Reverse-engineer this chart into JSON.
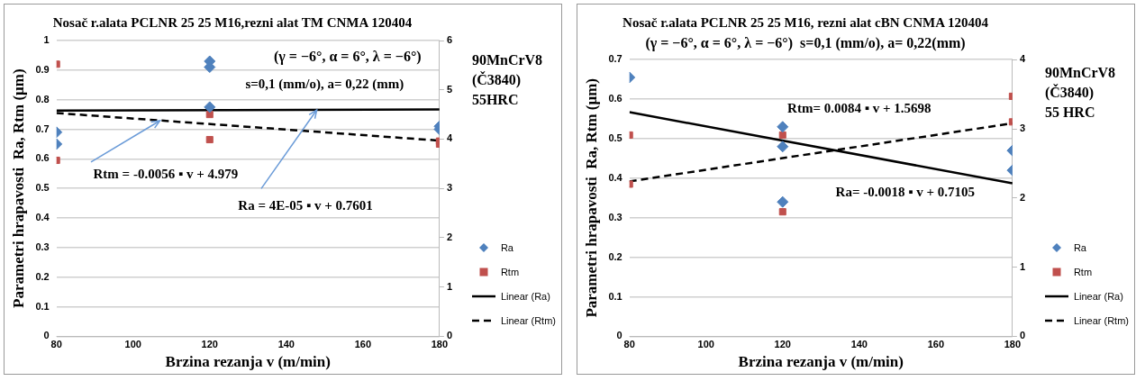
{
  "chart_data": [
    {
      "type": "scatter",
      "title": "Nosač r.alata PCLNR 25 25 M16,rezni alat TM CNMA 120404",
      "xlabel": "Brzina rezanja v (m/min)",
      "ylabel": "Parametri hrapavosti  Ra, Rtm (μm)",
      "xlim": [
        80,
        180
      ],
      "xticks": [
        80,
        100,
        120,
        140,
        160,
        180
      ],
      "ylim": [
        0,
        1
      ],
      "yticks": [
        0,
        0.1,
        0.2,
        0.3,
        0.4,
        0.5,
        0.6,
        0.7,
        0.8,
        0.9,
        1
      ],
      "y2lim": [
        0,
        6
      ],
      "y2ticks": [
        0,
        1,
        2,
        3,
        4,
        5,
        6
      ],
      "grid": "y",
      "legend": "right",
      "annotations": [
        "(γ = −6°, α = 6°, λ = −6°)",
        "s=0,1 (mm/o), a= 0,22 (mm)",
        "90MnCrV8\n(Č3840)\n55HRC",
        {
          "text": "Rtm = -0.0056 ▪ v + 4.979",
          "x": 107,
          "y": 0.73
        },
        {
          "text": "Ra = 4E-05 ▪ v + 0.7601",
          "x": 148,
          "y": 0.766
        }
      ],
      "series": [
        {
          "name": "Ra",
          "type": "scatter",
          "marker": "diamond",
          "color": "#4f81bd",
          "x": [
            80,
            80,
            120,
            120,
            120,
            180,
            180
          ],
          "values": [
            0.69,
            0.65,
            0.93,
            0.91,
            0.775,
            0.71,
            0.7
          ]
        },
        {
          "name": "Rtm",
          "type": "scatter",
          "marker": "square",
          "axis": "y2",
          "color": "#c0504d",
          "x": [
            80,
            80,
            120,
            120,
            180,
            180
          ],
          "values": [
            5.52,
            3.57,
            4.5,
            3.99,
            3.96,
            3.9
          ]
        },
        {
          "name": "Linear (Ra)",
          "type": "line",
          "marker": "none",
          "line_style": "solid",
          "color": "#000000",
          "x": [
            80,
            180
          ],
          "values": [
            0.763,
            0.767
          ]
        },
        {
          "name": "Linear (Rtm)",
          "type": "line",
          "marker": "none",
          "line_style": "dashed",
          "axis": "y2",
          "color": "#000000",
          "x": [
            80,
            180
          ],
          "values": [
            4.53,
            3.97
          ]
        }
      ]
    },
    {
      "type": "scatter",
      "title": "Nosač r.alata PCLNR 25 25 M16, rezni alat cBN CNMA 120404",
      "subtitle": "(γ = −6°, α = 6°, λ = −6°)  s=0,1 (mm/o), a= 0,22(mm)",
      "xlabel": "Brzina rezanja v (m/min)",
      "ylabel": "Parametri hrapavosti  Ra, Rtm (μm)",
      "xlim": [
        80,
        180
      ],
      "xticks": [
        80,
        100,
        120,
        140,
        160,
        180
      ],
      "ylim": [
        0,
        0.7
      ],
      "yticks": [
        0,
        0.1,
        0.2,
        0.3,
        0.4,
        0.5,
        0.6,
        0.7
      ],
      "y2lim": [
        0,
        4
      ],
      "y2ticks": [
        0,
        1,
        2,
        3,
        4
      ],
      "grid": "y",
      "legend": "right",
      "annotations": [
        "90MnCrV8\n(Č3840)\n55 HRC",
        "Rtm= 0.0084 ▪ v + 1.5698",
        "Ra= -0.0018 ▪ v + 0.7105"
      ],
      "series": [
        {
          "name": "Ra",
          "type": "scatter",
          "marker": "diamond",
          "color": "#4f81bd",
          "x": [
            80,
            120,
            120,
            120,
            180,
            180
          ],
          "values": [
            0.655,
            0.53,
            0.48,
            0.34,
            0.47,
            0.42
          ]
        },
        {
          "name": "Rtm",
          "type": "scatter",
          "marker": "square",
          "axis": "y2",
          "color": "#c0504d",
          "x": [
            80,
            80,
            120,
            120,
            180,
            180
          ],
          "values": [
            2.91,
            2.2,
            2.91,
            1.8,
            3.47,
            3.1
          ]
        },
        {
          "name": "Linear (Ra)",
          "type": "line",
          "marker": "none",
          "line_style": "solid",
          "color": "#000000",
          "x": [
            80,
            180
          ],
          "values": [
            0.567,
            0.387
          ]
        },
        {
          "name": "Linear (Rtm)",
          "type": "line",
          "marker": "none",
          "line_style": "dashed",
          "axis": "y2",
          "color": "#000000",
          "x": [
            80,
            180
          ],
          "values": [
            2.24,
            3.08
          ]
        }
      ]
    }
  ]
}
